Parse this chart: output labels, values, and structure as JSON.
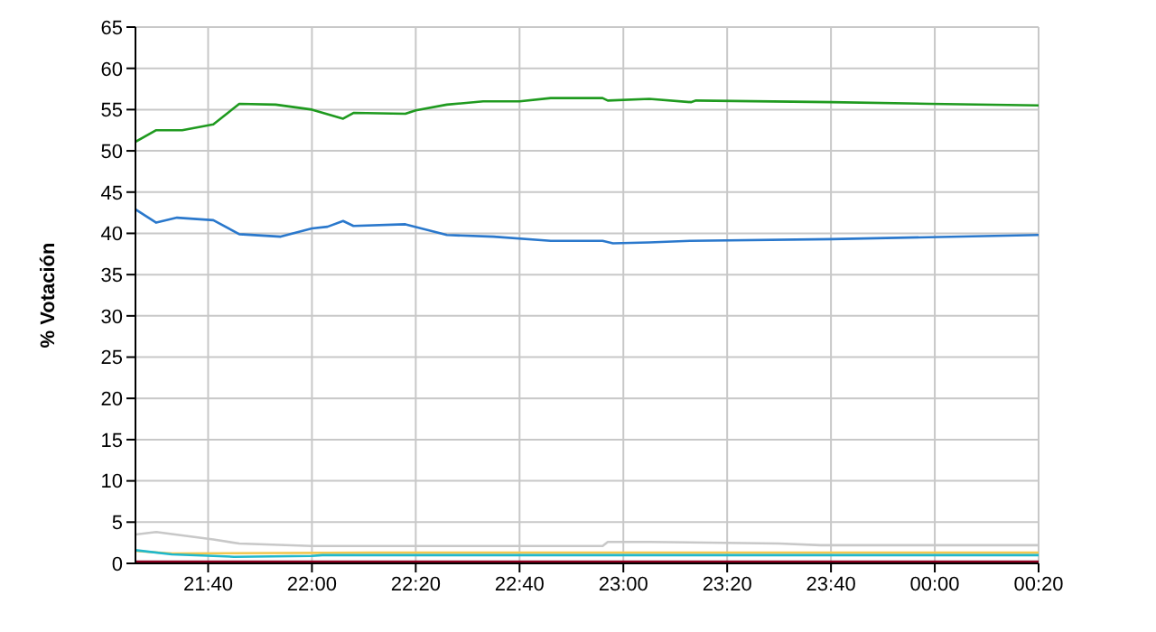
{
  "chart_data": {
    "type": "line",
    "ylabel": "% Votación",
    "xlim": [
      "2000-01-01T21:26",
      "2000-01-02T00:20"
    ],
    "xticks": [
      {
        "value": "2000-01-01T21:40",
        "label": "21:40"
      },
      {
        "value": "2000-01-01T22:00",
        "label": "22:00"
      },
      {
        "value": "2000-01-01T22:20",
        "label": "22:20"
      },
      {
        "value": "2000-01-01T22:40",
        "label": "22:40"
      },
      {
        "value": "2000-01-01T23:00",
        "label": "23:00"
      },
      {
        "value": "2000-01-01T23:20",
        "label": "23:20"
      },
      {
        "value": "2000-01-01T23:40",
        "label": "23:40"
      },
      {
        "value": "2000-01-02T00:00",
        "label": "00:00"
      },
      {
        "value": "2000-01-02T00:20",
        "label": "00:20"
      }
    ],
    "ylim": [
      0,
      65
    ],
    "yticks": [
      0,
      5,
      10,
      15,
      20,
      25,
      30,
      35,
      40,
      45,
      50,
      55,
      60,
      65
    ],
    "grid": true,
    "marker": "none",
    "line_style": "solid",
    "series": [
      {
        "color": "#1f9a1f",
        "x": [
          "2000-01-01T21:26",
          "2000-01-01T21:30",
          "2000-01-01T21:35",
          "2000-01-01T21:41",
          "2000-01-01T21:46",
          "2000-01-01T21:53",
          "2000-01-01T22:00",
          "2000-01-01T22:06",
          "2000-01-01T22:08",
          "2000-01-01T22:18",
          "2000-01-01T22:20",
          "2000-01-01T22:26",
          "2000-01-01T22:33",
          "2000-01-01T22:40",
          "2000-01-01T22:46",
          "2000-01-01T22:56",
          "2000-01-01T22:57",
          "2000-01-01T23:05",
          "2000-01-01T23:13",
          "2000-01-01T23:14",
          "2000-01-01T23:40",
          "2000-01-01T23:59",
          "2000-01-02T00:20"
        ],
        "values": [
          51.1,
          52.5,
          52.5,
          53.2,
          55.7,
          55.6,
          55.0,
          53.9,
          54.6,
          54.5,
          54.9,
          55.6,
          56.0,
          56.0,
          56.4,
          56.4,
          56.1,
          56.3,
          55.9,
          56.1,
          55.9,
          55.7,
          55.5
        ]
      },
      {
        "color": "#2a78cc",
        "x": [
          "2000-01-01T21:26",
          "2000-01-01T21:30",
          "2000-01-01T21:34",
          "2000-01-01T21:41",
          "2000-01-01T21:46",
          "2000-01-01T21:54",
          "2000-01-01T22:00",
          "2000-01-01T22:03",
          "2000-01-01T22:06",
          "2000-01-01T22:08",
          "2000-01-01T22:18",
          "2000-01-01T22:26",
          "2000-01-01T22:35",
          "2000-01-01T22:46",
          "2000-01-01T22:56",
          "2000-01-01T22:58",
          "2000-01-01T23:05",
          "2000-01-01T23:13",
          "2000-01-01T23:40",
          "2000-01-02T00:20"
        ],
        "values": [
          42.9,
          41.3,
          41.9,
          41.6,
          39.9,
          39.6,
          40.6,
          40.8,
          41.5,
          40.9,
          41.1,
          39.8,
          39.6,
          39.1,
          39.1,
          38.8,
          38.9,
          39.1,
          39.3,
          39.8
        ]
      },
      {
        "color": "#c8c8c8",
        "x": [
          "2000-01-01T21:26",
          "2000-01-01T21:30",
          "2000-01-01T21:41",
          "2000-01-01T21:46",
          "2000-01-01T22:00",
          "2000-01-01T22:20",
          "2000-01-01T22:56",
          "2000-01-01T22:57",
          "2000-01-01T23:05",
          "2000-01-01T23:30",
          "2000-01-01T23:38",
          "2000-01-02T00:20"
        ],
        "values": [
          3.5,
          3.8,
          2.9,
          2.4,
          2.1,
          2.1,
          2.1,
          2.6,
          2.6,
          2.4,
          2.2,
          2.2
        ]
      },
      {
        "color": "#f2c850",
        "x": [
          "2000-01-01T21:26",
          "2000-01-01T21:33",
          "2000-01-01T22:12",
          "2000-01-02T00:20"
        ],
        "values": [
          1.5,
          1.2,
          1.3,
          1.3
        ]
      },
      {
        "color": "#20b8cc",
        "x": [
          "2000-01-01T21:26",
          "2000-01-01T21:33",
          "2000-01-01T21:45",
          "2000-01-01T22:00",
          "2000-01-01T22:02",
          "2000-01-02T00:20"
        ],
        "values": [
          1.6,
          1.1,
          0.8,
          0.9,
          1.0,
          1.0
        ]
      },
      {
        "color": "#8b0020",
        "x": [
          "2000-01-01T21:26",
          "2000-01-02T00:20"
        ],
        "values": [
          0.2,
          0.2
        ]
      }
    ]
  }
}
